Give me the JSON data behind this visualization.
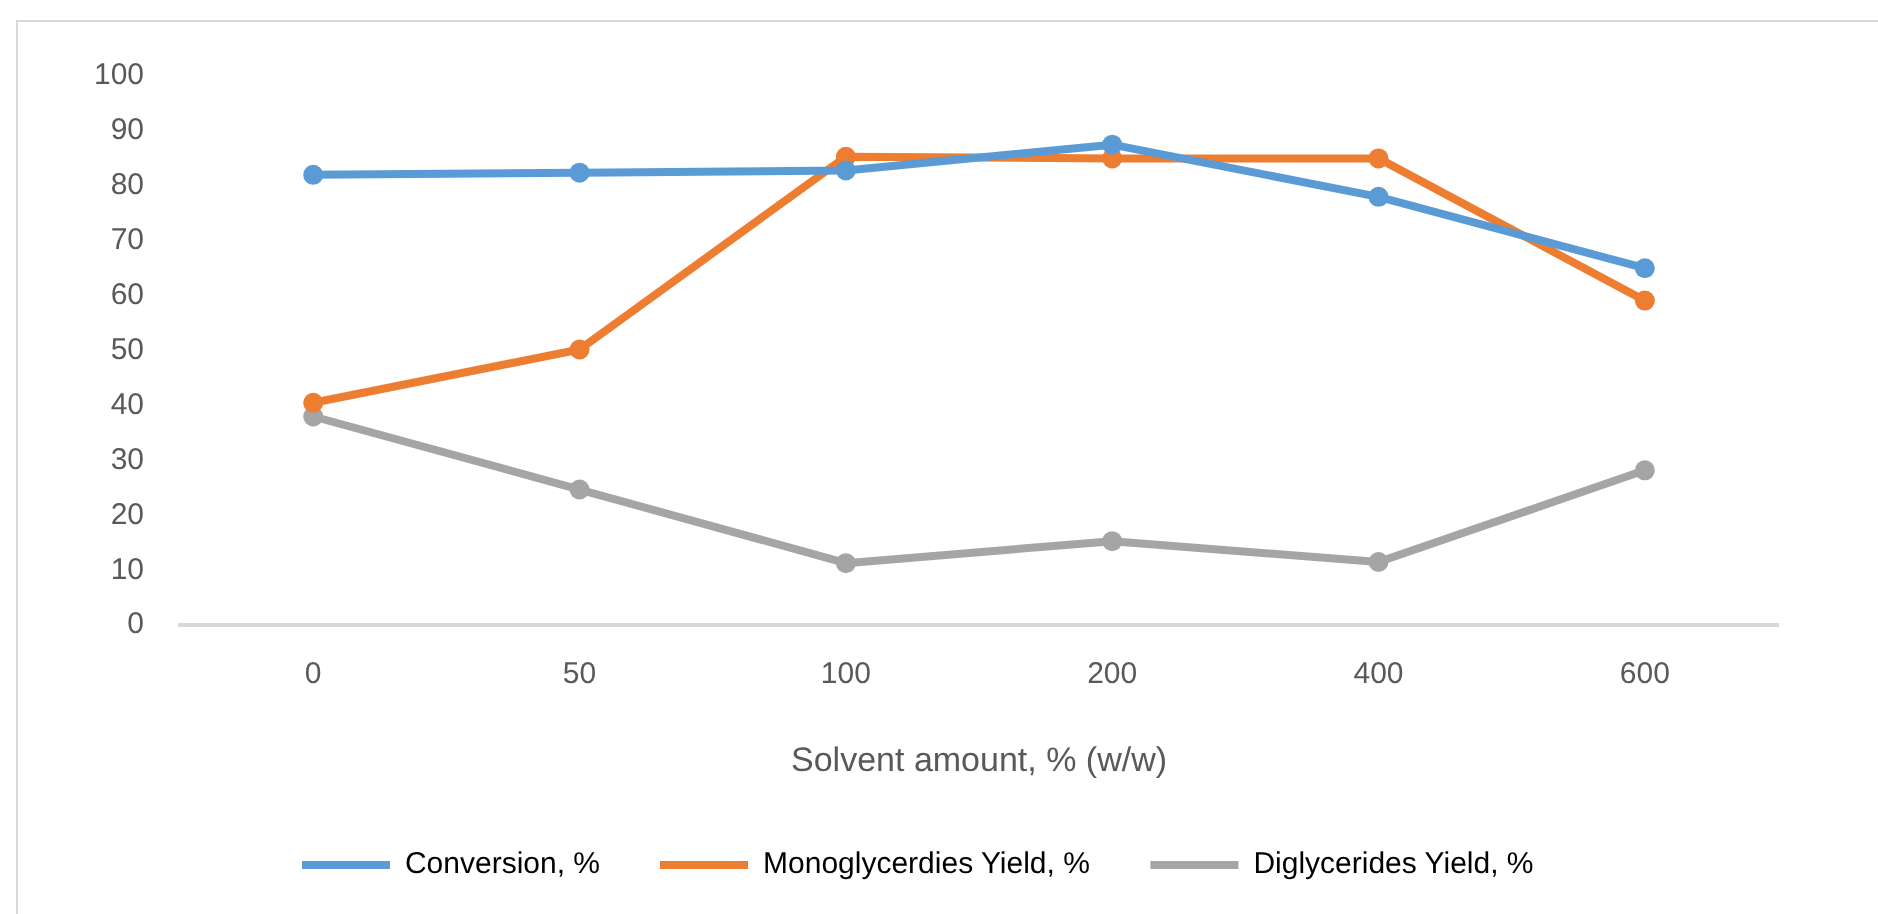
{
  "chart_data": {
    "type": "line",
    "xlabel": "Solvent amount, % (w/w)",
    "categories": [
      "0",
      "50",
      "100",
      "200",
      "400",
      "600"
    ],
    "series": [
      {
        "name": "Conversion, %",
        "color": "#5b9bd5",
        "values": [
          82,
          82.4,
          82.8,
          87.5,
          78,
          65
        ]
      },
      {
        "name": "Monoglycerdies Yield, %",
        "color": "#ed7d31",
        "values": [
          40.5,
          50.2,
          85.3,
          85,
          85,
          59.1
        ]
      },
      {
        "name": "Diglycerides Yield, %",
        "color": "#a5a5a5",
        "values": [
          38,
          24.7,
          11.3,
          15.3,
          11.5,
          28.2
        ]
      }
    ],
    "ylim": [
      0,
      100
    ],
    "yticks": [
      0,
      10,
      20,
      30,
      40,
      50,
      60,
      70,
      80,
      90,
      100
    ],
    "grid": false,
    "legend": "bottom",
    "marker": "circle",
    "line_style": "solid"
  }
}
